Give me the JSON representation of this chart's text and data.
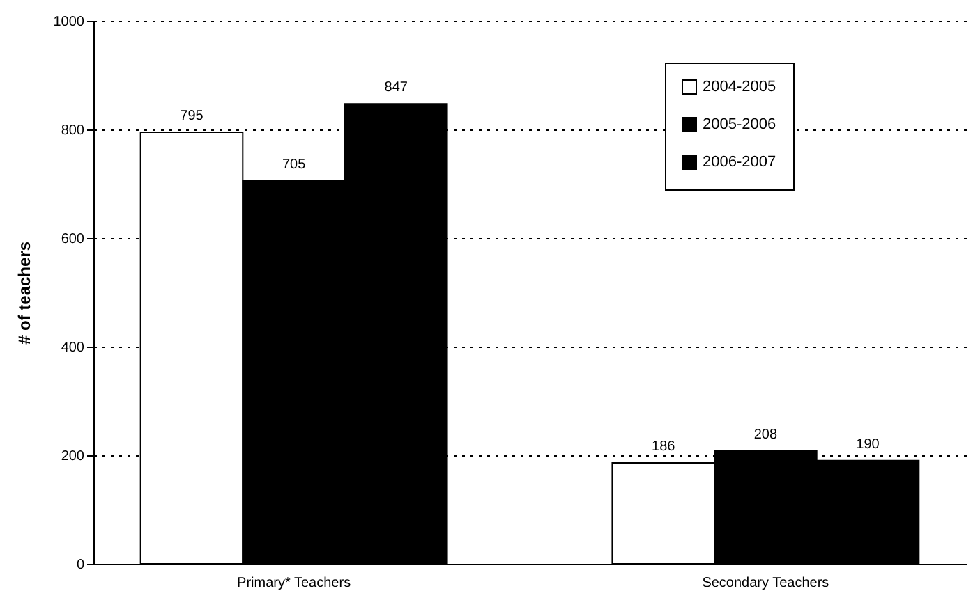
{
  "chart_data": {
    "type": "bar",
    "ylabel": "# of teachers",
    "categories": [
      "Primary* Teachers",
      "Secondary Teachers"
    ],
    "series": [
      {
        "name": "2004-2005",
        "color": "#ffffff",
        "values": [
          795,
          186
        ]
      },
      {
        "name": "2005-2006",
        "color": "#000000",
        "values": [
          705,
          208
        ]
      },
      {
        "name": "2006-2007",
        "color": "#000000",
        "values": [
          847,
          190
        ]
      }
    ],
    "ylim": [
      0,
      1000
    ],
    "yticks": [
      0,
      200,
      400,
      600,
      800,
      1000
    ],
    "grid": "y",
    "legend": "top right",
    "data_labels": true
  }
}
